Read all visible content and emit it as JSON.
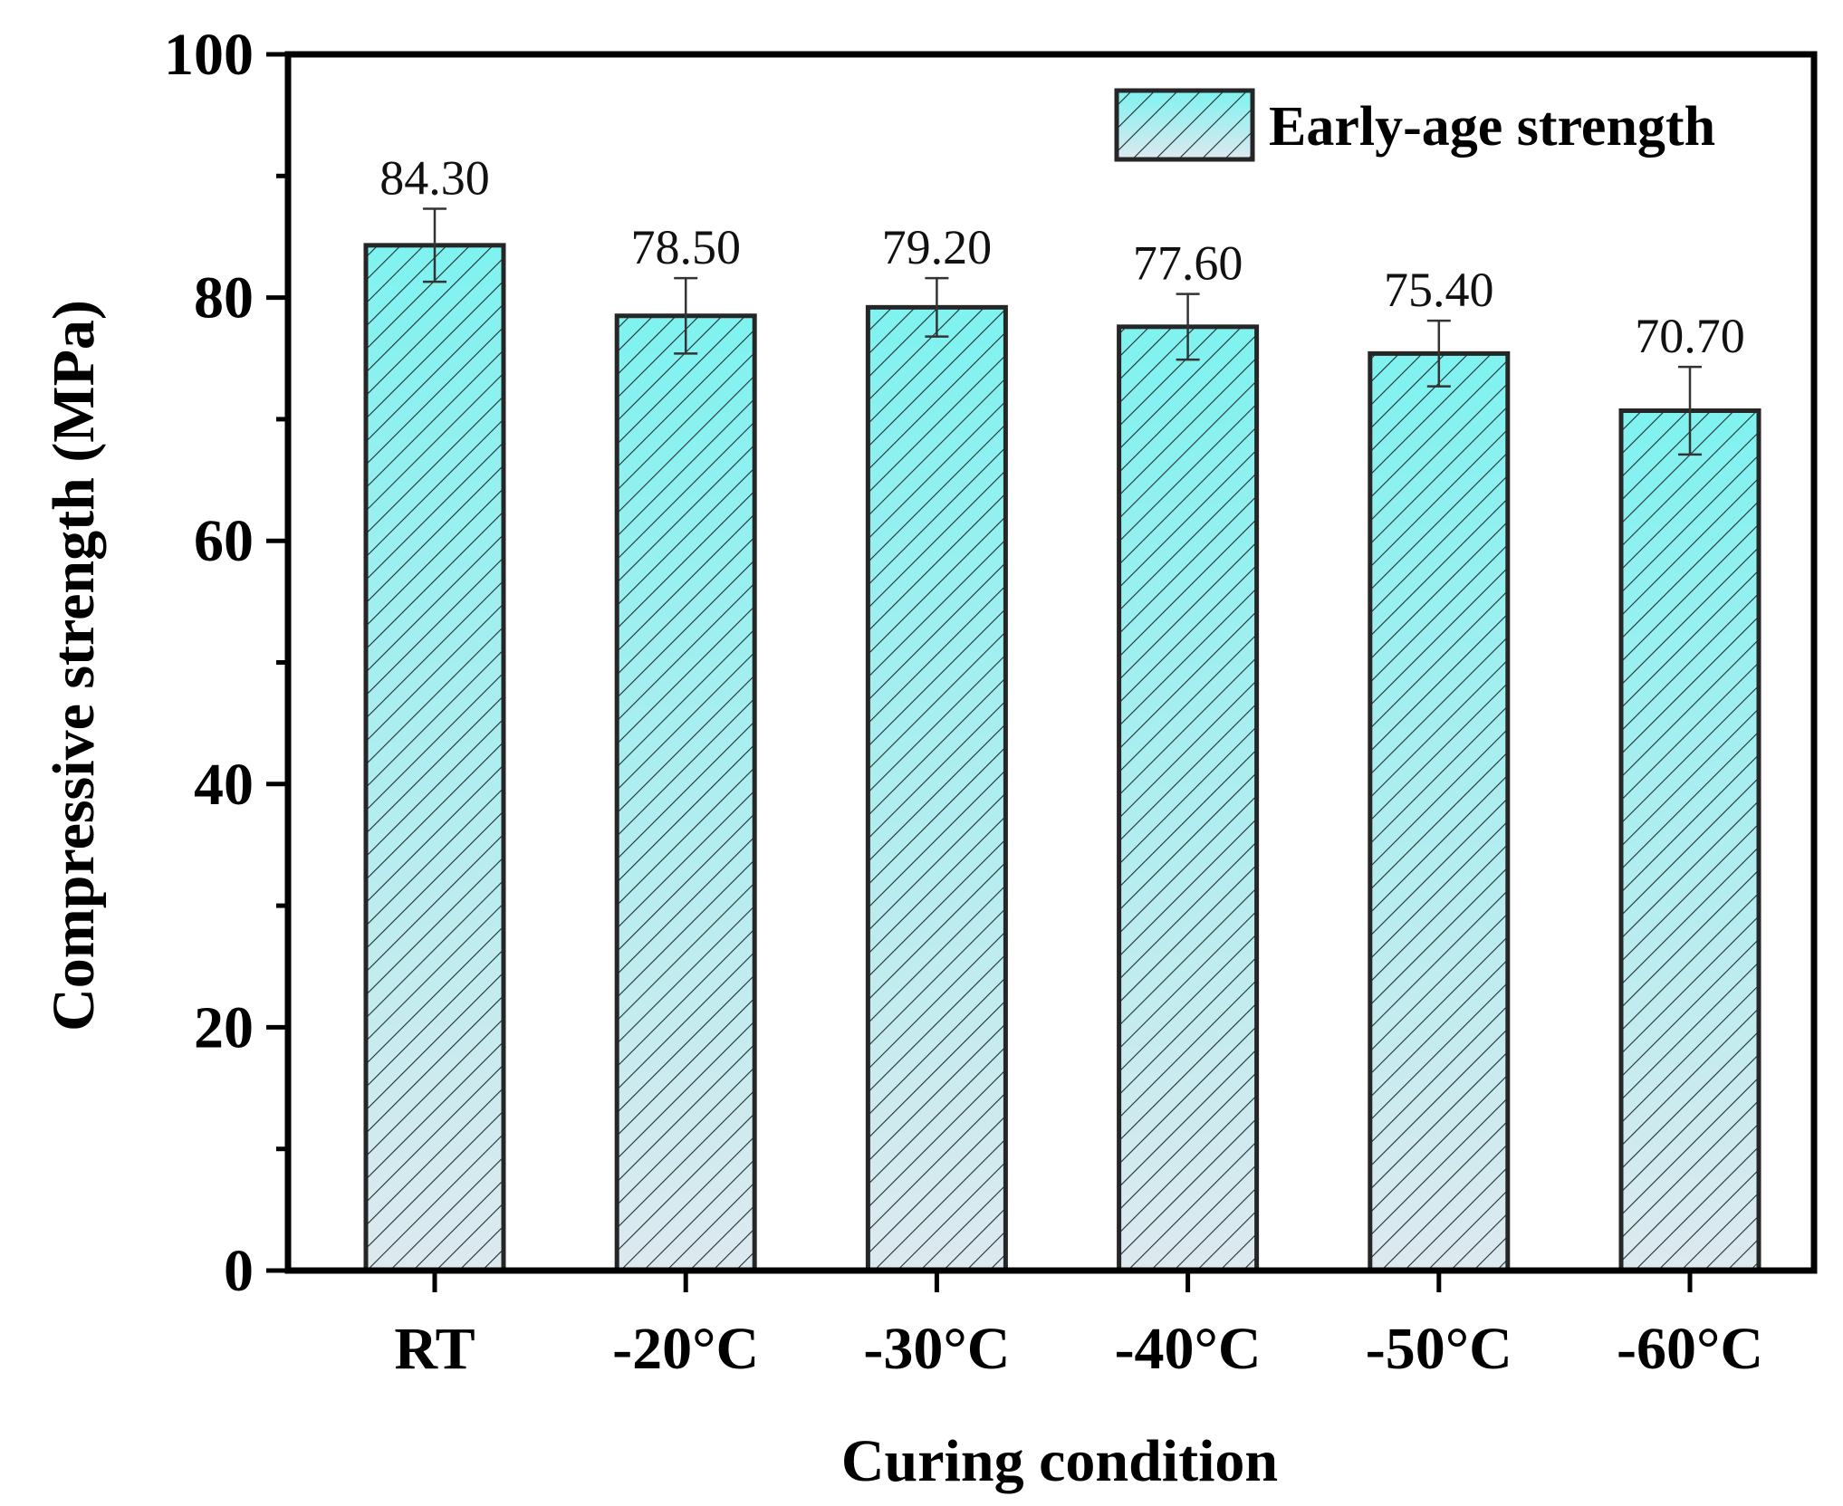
{
  "chart_data": {
    "type": "bar",
    "categories": [
      "RT",
      "-20°C",
      "-30°C",
      "-40°C",
      "-50°C",
      "-60°C"
    ],
    "series": [
      {
        "name": "Early-age strength",
        "values": [
          84.3,
          78.5,
          79.2,
          77.6,
          75.4,
          70.7
        ],
        "errors": [
          3.0,
          3.1,
          2.4,
          2.7,
          2.7,
          3.6
        ]
      }
    ],
    "value_labels": [
      "84.30",
      "78.50",
      "79.20",
      "77.60",
      "75.40",
      "70.70"
    ],
    "ylim": [
      0,
      100
    ],
    "yticks": [
      0,
      20,
      40,
      60,
      80,
      100
    ],
    "ytick_labels": [
      "0",
      "20",
      "40",
      "60",
      "80",
      "100"
    ],
    "xlabel": "Curing condition",
    "ylabel": "Compressive strength (MPa)",
    "title": "",
    "legend_position": "top-right",
    "grid": false,
    "colors": {
      "bar_top": "#7ff2f0",
      "bar_bottom": "#dde9ef",
      "hatch": "#1f2f2f",
      "outline": "#262626",
      "axis": "#000000"
    }
  }
}
